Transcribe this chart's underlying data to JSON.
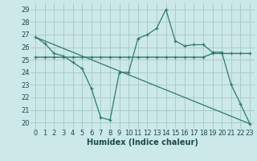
{
  "xlabel": "Humidex (Indice chaleur)",
  "background_color": "#cce8e8",
  "grid_color": "#aacccc",
  "line_color": "#2e7b6e",
  "x_ticks": [
    0,
    1,
    2,
    3,
    4,
    5,
    6,
    7,
    8,
    9,
    10,
    11,
    12,
    13,
    14,
    15,
    16,
    17,
    18,
    19,
    20,
    21,
    22,
    23
  ],
  "y_ticks": [
    20,
    21,
    22,
    23,
    24,
    25,
    26,
    27,
    28,
    29
  ],
  "xlim": [
    -0.5,
    23.5
  ],
  "ylim": [
    19.5,
    29.5
  ],
  "line1_x": [
    0,
    1,
    2,
    3,
    4,
    5,
    6,
    7,
    8,
    9,
    10,
    11,
    12,
    13,
    14,
    15,
    16,
    17,
    18,
    19,
    20,
    21,
    22,
    23
  ],
  "line1_y": [
    26.8,
    26.3,
    25.5,
    25.3,
    24.8,
    24.3,
    22.7,
    20.4,
    20.2,
    24.0,
    24.0,
    26.7,
    27.0,
    27.5,
    29.0,
    26.5,
    26.1,
    26.2,
    26.2,
    25.6,
    25.6,
    23.0,
    21.5,
    19.9
  ],
  "line2_x": [
    0,
    1,
    2,
    3,
    4,
    5,
    6,
    7,
    8,
    9,
    10,
    11,
    12,
    13,
    14,
    15,
    16,
    17,
    18,
    19,
    20,
    21,
    22,
    23
  ],
  "line2_y": [
    25.2,
    25.2,
    25.2,
    25.2,
    25.2,
    25.2,
    25.2,
    25.2,
    25.2,
    25.2,
    25.2,
    25.2,
    25.2,
    25.2,
    25.2,
    25.2,
    25.2,
    25.2,
    25.2,
    25.5,
    25.5,
    25.5,
    25.5,
    25.5
  ],
  "line3_x": [
    0,
    23
  ],
  "line3_y": [
    26.8,
    19.9
  ],
  "xlabel_fontsize": 7,
  "tick_fontsize": 6,
  "label_color": "#1a4a4a"
}
